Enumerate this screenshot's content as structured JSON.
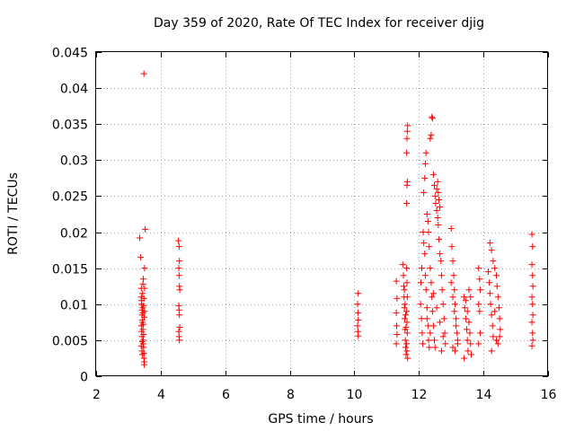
{
  "chart_data": {
    "type": "scatter",
    "title": "Day 359 of 2020, Rate Of TEC Index for receiver djig",
    "xlabel": "GPS time / hours",
    "ylabel": "ROTI / TECUs",
    "xlim": [
      2,
      16
    ],
    "ylim": [
      0,
      0.045
    ],
    "xticks": [
      2,
      4,
      6,
      8,
      10,
      12,
      14,
      16
    ],
    "xtick_labels": [
      "2",
      "4",
      "6",
      "8",
      "10",
      "12",
      "14",
      "16"
    ],
    "yticks": [
      0,
      0.005,
      0.01,
      0.015,
      0.02,
      0.025,
      0.03,
      0.035,
      0.04,
      0.045
    ],
    "ytick_labels": [
      "0",
      "0.005",
      "0.01",
      "0.015",
      "0.02",
      "0.025",
      "0.03",
      "0.035",
      "0.04",
      "0.045"
    ],
    "grid": true,
    "marker": "+",
    "color": "#ff0000",
    "series": [
      {
        "name": "ROTI",
        "points": [
          [
            3.35,
            0.0192
          ],
          [
            3.38,
            0.0165
          ],
          [
            3.4,
            0.0122
          ],
          [
            3.4,
            0.011
          ],
          [
            3.41,
            0.01
          ],
          [
            3.42,
            0.0092
          ],
          [
            3.42,
            0.0085
          ],
          [
            3.43,
            0.0078
          ],
          [
            3.4,
            0.007
          ],
          [
            3.41,
            0.0062
          ],
          [
            3.42,
            0.0055
          ],
          [
            3.43,
            0.0048
          ],
          [
            3.4,
            0.0042
          ],
          [
            3.42,
            0.0035
          ],
          [
            3.43,
            0.003
          ],
          [
            3.41,
            0.0105
          ],
          [
            3.44,
            0.0115
          ],
          [
            3.45,
            0.0128
          ],
          [
            3.46,
            0.0135
          ],
          [
            3.44,
            0.0095
          ],
          [
            3.45,
            0.0088
          ],
          [
            3.46,
            0.0072
          ],
          [
            3.45,
            0.0065
          ],
          [
            3.47,
            0.0058
          ],
          [
            3.46,
            0.005
          ],
          [
            3.47,
            0.004
          ],
          [
            3.48,
            0.0032
          ],
          [
            3.48,
            0.0025
          ],
          [
            3.49,
            0.002
          ],
          [
            3.49,
            0.0016
          ],
          [
            3.48,
            0.0108
          ],
          [
            3.47,
            0.0098
          ],
          [
            3.49,
            0.0082
          ],
          [
            3.5,
            0.0122
          ],
          [
            3.5,
            0.015
          ],
          [
            3.52,
            0.0204
          ],
          [
            3.48,
            0.042
          ],
          [
            3.44,
            0.0075
          ],
          [
            3.46,
            0.0045
          ],
          [
            3.5,
            0.009
          ],
          [
            4.55,
            0.0188
          ],
          [
            4.57,
            0.018
          ],
          [
            4.58,
            0.016
          ],
          [
            4.56,
            0.015
          ],
          [
            4.57,
            0.014
          ],
          [
            4.58,
            0.0125
          ],
          [
            4.59,
            0.012
          ],
          [
            4.56,
            0.0098
          ],
          [
            4.57,
            0.0092
          ],
          [
            4.58,
            0.0085
          ],
          [
            4.59,
            0.0068
          ],
          [
            4.56,
            0.0062
          ],
          [
            4.57,
            0.0055
          ],
          [
            4.58,
            0.005
          ],
          [
            10.12,
            0.0115
          ],
          [
            10.1,
            0.01
          ],
          [
            10.11,
            0.0088
          ],
          [
            10.12,
            0.0078
          ],
          [
            10.1,
            0.007
          ],
          [
            10.11,
            0.0062
          ],
          [
            10.12,
            0.0056
          ],
          [
            11.3,
            0.0132
          ],
          [
            11.32,
            0.0108
          ],
          [
            11.3,
            0.0088
          ],
          [
            11.31,
            0.007
          ],
          [
            11.32,
            0.0058
          ],
          [
            11.3,
            0.0045
          ],
          [
            11.5,
            0.0155
          ],
          [
            11.52,
            0.014
          ],
          [
            11.53,
            0.0125
          ],
          [
            11.54,
            0.011
          ],
          [
            11.55,
            0.0095
          ],
          [
            11.56,
            0.008
          ],
          [
            11.57,
            0.0065
          ],
          [
            11.58,
            0.005
          ],
          [
            11.59,
            0.004
          ],
          [
            11.6,
            0.003
          ],
          [
            11.55,
            0.012
          ],
          [
            11.57,
            0.01
          ],
          [
            11.59,
            0.0085
          ],
          [
            11.6,
            0.0068
          ],
          [
            11.62,
            0.015
          ],
          [
            11.63,
            0.013
          ],
          [
            11.64,
            0.011
          ],
          [
            11.62,
            0.009
          ],
          [
            11.63,
            0.0075
          ],
          [
            11.64,
            0.006
          ],
          [
            11.62,
            0.0045
          ],
          [
            11.63,
            0.0035
          ],
          [
            11.62,
            0.024
          ],
          [
            11.63,
            0.0265
          ],
          [
            11.64,
            0.027
          ],
          [
            11.62,
            0.031
          ],
          [
            11.63,
            0.033
          ],
          [
            11.64,
            0.034
          ],
          [
            11.65,
            0.0348
          ],
          [
            11.65,
            0.0025
          ],
          [
            12.05,
            0.01
          ],
          [
            12.08,
            0.008
          ],
          [
            12.1,
            0.006
          ],
          [
            12.12,
            0.0045
          ],
          [
            12.06,
            0.013
          ],
          [
            12.09,
            0.015
          ],
          [
            12.13,
            0.02
          ],
          [
            12.15,
            0.0185
          ],
          [
            12.18,
            0.017
          ],
          [
            12.2,
            0.014
          ],
          [
            12.22,
            0.012
          ],
          [
            12.25,
            0.0095
          ],
          [
            12.28,
            0.007
          ],
          [
            12.3,
            0.005
          ],
          [
            12.32,
            0.004
          ],
          [
            12.15,
            0.0255
          ],
          [
            12.18,
            0.0275
          ],
          [
            12.2,
            0.0295
          ],
          [
            12.22,
            0.031
          ],
          [
            12.25,
            0.0225
          ],
          [
            12.28,
            0.0215
          ],
          [
            12.3,
            0.02
          ],
          [
            12.32,
            0.018
          ],
          [
            12.35,
            0.015
          ],
          [
            12.38,
            0.013
          ],
          [
            12.4,
            0.011
          ],
          [
            12.42,
            0.009
          ],
          [
            12.45,
            0.007
          ],
          [
            12.48,
            0.005
          ],
          [
            12.5,
            0.004
          ],
          [
            12.35,
            0.033
          ],
          [
            12.38,
            0.0335
          ],
          [
            12.4,
            0.036
          ],
          [
            12.42,
            0.0358
          ],
          [
            12.45,
            0.028
          ],
          [
            12.48,
            0.0265
          ],
          [
            12.5,
            0.025
          ],
          [
            12.52,
            0.024
          ],
          [
            12.55,
            0.023
          ],
          [
            12.58,
            0.022
          ],
          [
            12.6,
            0.021
          ],
          [
            12.62,
            0.019
          ],
          [
            12.65,
            0.017
          ],
          [
            12.55,
            0.026
          ],
          [
            12.58,
            0.027
          ],
          [
            12.6,
            0.0255
          ],
          [
            12.62,
            0.0245
          ],
          [
            12.65,
            0.0235
          ],
          [
            12.68,
            0.016
          ],
          [
            12.7,
            0.014
          ],
          [
            12.72,
            0.012
          ],
          [
            12.75,
            0.01
          ],
          [
            12.78,
            0.008
          ],
          [
            12.8,
            0.006
          ],
          [
            12.82,
            0.0045
          ],
          [
            12.7,
            0.0035
          ],
          [
            12.25,
            0.008
          ],
          [
            12.35,
            0.006
          ],
          [
            12.45,
            0.0115
          ],
          [
            12.55,
            0.0095
          ],
          [
            12.65,
            0.0075
          ],
          [
            12.75,
            0.0055
          ],
          [
            13.0,
            0.0205
          ],
          [
            13.02,
            0.018
          ],
          [
            13.05,
            0.016
          ],
          [
            13.08,
            0.014
          ],
          [
            13.1,
            0.012
          ],
          [
            13.12,
            0.01
          ],
          [
            13.15,
            0.008
          ],
          [
            13.18,
            0.006
          ],
          [
            13.2,
            0.0045
          ],
          [
            13.0,
            0.013
          ],
          [
            13.05,
            0.011
          ],
          [
            13.1,
            0.009
          ],
          [
            13.15,
            0.007
          ],
          [
            13.2,
            0.005
          ],
          [
            13.05,
            0.004
          ],
          [
            13.12,
            0.0035
          ],
          [
            13.4,
            0.011
          ],
          [
            13.42,
            0.0095
          ],
          [
            13.45,
            0.008
          ],
          [
            13.48,
            0.0065
          ],
          [
            13.5,
            0.005
          ],
          [
            13.52,
            0.0035
          ],
          [
            13.4,
            0.0025
          ],
          [
            13.45,
            0.0105
          ],
          [
            13.5,
            0.009
          ],
          [
            13.55,
            0.0075
          ],
          [
            13.58,
            0.006
          ],
          [
            13.6,
            0.0045
          ],
          [
            13.62,
            0.003
          ],
          [
            13.55,
            0.012
          ],
          [
            13.6,
            0.011
          ],
          [
            13.85,
            0.015
          ],
          [
            13.88,
            0.0135
          ],
          [
            13.9,
            0.012
          ],
          [
            13.85,
            0.01
          ],
          [
            13.88,
            0.009
          ],
          [
            13.9,
            0.006
          ],
          [
            13.85,
            0.0045
          ],
          [
            14.15,
            0.0145
          ],
          [
            14.18,
            0.013
          ],
          [
            14.2,
            0.0115
          ],
          [
            14.22,
            0.01
          ],
          [
            14.25,
            0.0085
          ],
          [
            14.28,
            0.007
          ],
          [
            14.3,
            0.0055
          ],
          [
            14.2,
            0.0185
          ],
          [
            14.25,
            0.0175
          ],
          [
            14.3,
            0.016
          ],
          [
            14.35,
            0.015
          ],
          [
            14.4,
            0.014
          ],
          [
            14.42,
            0.0125
          ],
          [
            14.45,
            0.011
          ],
          [
            14.48,
            0.0095
          ],
          [
            14.5,
            0.008
          ],
          [
            14.52,
            0.0065
          ],
          [
            14.4,
            0.005
          ],
          [
            14.45,
            0.0045
          ],
          [
            14.5,
            0.0055
          ],
          [
            14.35,
            0.009
          ],
          [
            14.25,
            0.0035
          ],
          [
            15.5,
            0.0197
          ],
          [
            15.52,
            0.018
          ],
          [
            15.5,
            0.0155
          ],
          [
            15.52,
            0.014
          ],
          [
            15.53,
            0.0125
          ],
          [
            15.5,
            0.011
          ],
          [
            15.52,
            0.01
          ],
          [
            15.53,
            0.0085
          ],
          [
            15.5,
            0.0075
          ],
          [
            15.52,
            0.006
          ],
          [
            15.53,
            0.005
          ],
          [
            15.5,
            0.0042
          ]
        ]
      }
    ]
  }
}
